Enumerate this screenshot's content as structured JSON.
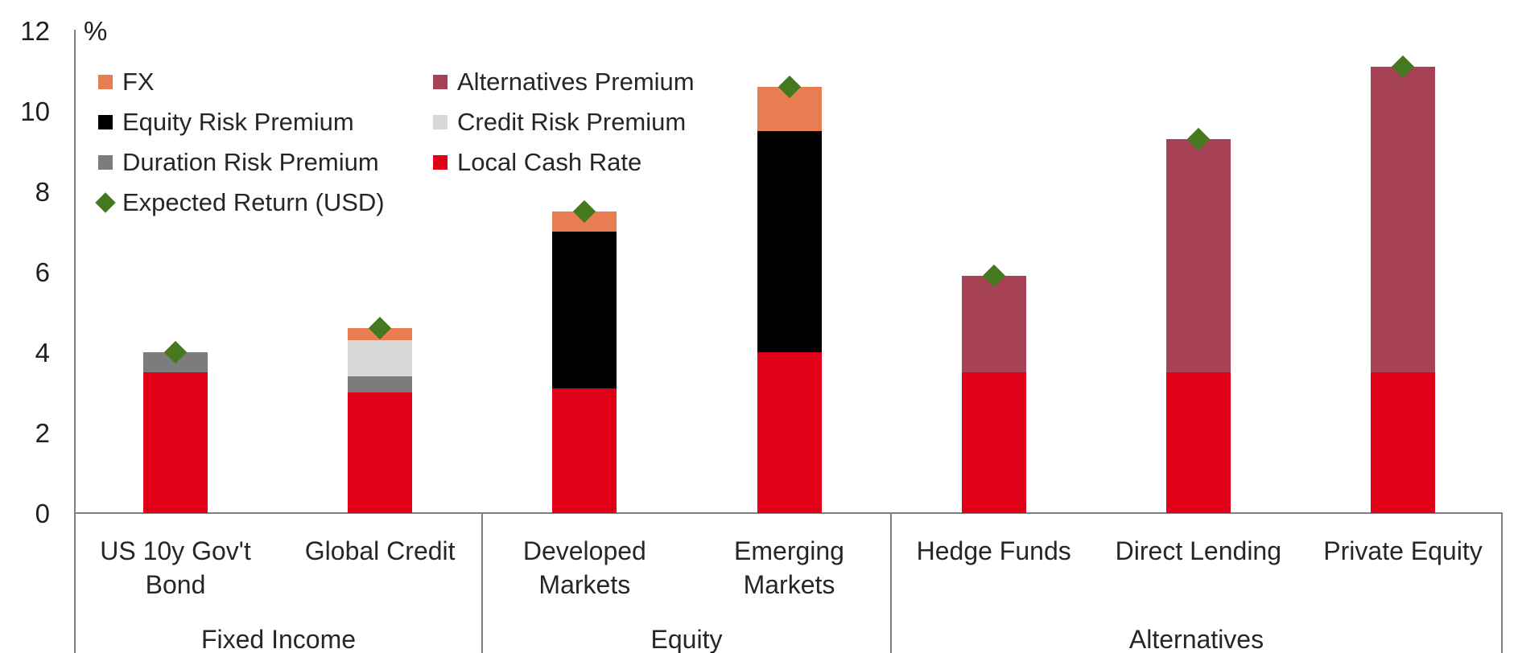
{
  "chart_data": {
    "type": "bar",
    "stacked": true,
    "title": "",
    "unit_label": "%",
    "ylim": [
      0,
      12
    ],
    "yticks": [
      0,
      2,
      4,
      6,
      8,
      10,
      12
    ],
    "grid": false,
    "legend_position": "top-left, two columns",
    "categories": [
      "US 10y Gov't Bond",
      "Global Credit",
      "Developed Markets",
      "Emerging Markets",
      "Hedge Funds",
      "Direct Lending",
      "Private Equity"
    ],
    "category_lines": [
      [
        "US 10y Gov't",
        "Bond"
      ],
      [
        "Global Credit"
      ],
      [
        "Developed",
        "Markets"
      ],
      [
        "Emerging",
        "Markets"
      ],
      [
        "Hedge Funds"
      ],
      [
        "Direct Lending"
      ],
      [
        "Private Equity"
      ]
    ],
    "groups": [
      {
        "label": "Fixed Income",
        "category_indexes": [
          0,
          1
        ]
      },
      {
        "label": "Equity",
        "category_indexes": [
          2,
          3
        ]
      },
      {
        "label": "Alternatives",
        "category_indexes": [
          4,
          5,
          6
        ]
      }
    ],
    "series": [
      {
        "name": "Local Cash Rate",
        "color": "#e00018",
        "values": [
          3.5,
          3.0,
          3.1,
          4.0,
          3.5,
          3.5,
          3.5
        ]
      },
      {
        "name": "Duration Risk Premium",
        "color": "#7c7c7c",
        "values": [
          0.5,
          0.4,
          0,
          0,
          0,
          0,
          0
        ]
      },
      {
        "name": "Credit Risk Premium",
        "color": "#d8d8d8",
        "values": [
          0,
          0.9,
          0,
          0,
          0,
          0,
          0
        ]
      },
      {
        "name": "Equity Risk Premium",
        "color": "#000000",
        "values": [
          0,
          0,
          3.9,
          5.5,
          0,
          0,
          0
        ]
      },
      {
        "name": "Alternatives Premium",
        "color": "#a64254",
        "values": [
          0,
          0,
          0,
          0,
          2.4,
          5.8,
          7.6
        ]
      },
      {
        "name": "FX",
        "color": "#e87d51",
        "values": [
          0,
          0.3,
          0.5,
          1.1,
          0,
          0,
          0
        ]
      }
    ],
    "marker_series": {
      "name": "Expected Return (USD)",
      "shape": "diamond",
      "color": "#46781f",
      "values": [
        4.0,
        4.6,
        7.5,
        10.6,
        5.9,
        9.3,
        11.1
      ]
    },
    "legend": {
      "columns": [
        [
          "FX",
          "Equity Risk Premium",
          "Duration Risk Premium",
          "Expected Return (USD)"
        ],
        [
          "Alternatives Premium",
          "Credit Risk Premium",
          "Local Cash Rate"
        ]
      ]
    },
    "axis_color": "#808080",
    "text_color": "#262626"
  }
}
